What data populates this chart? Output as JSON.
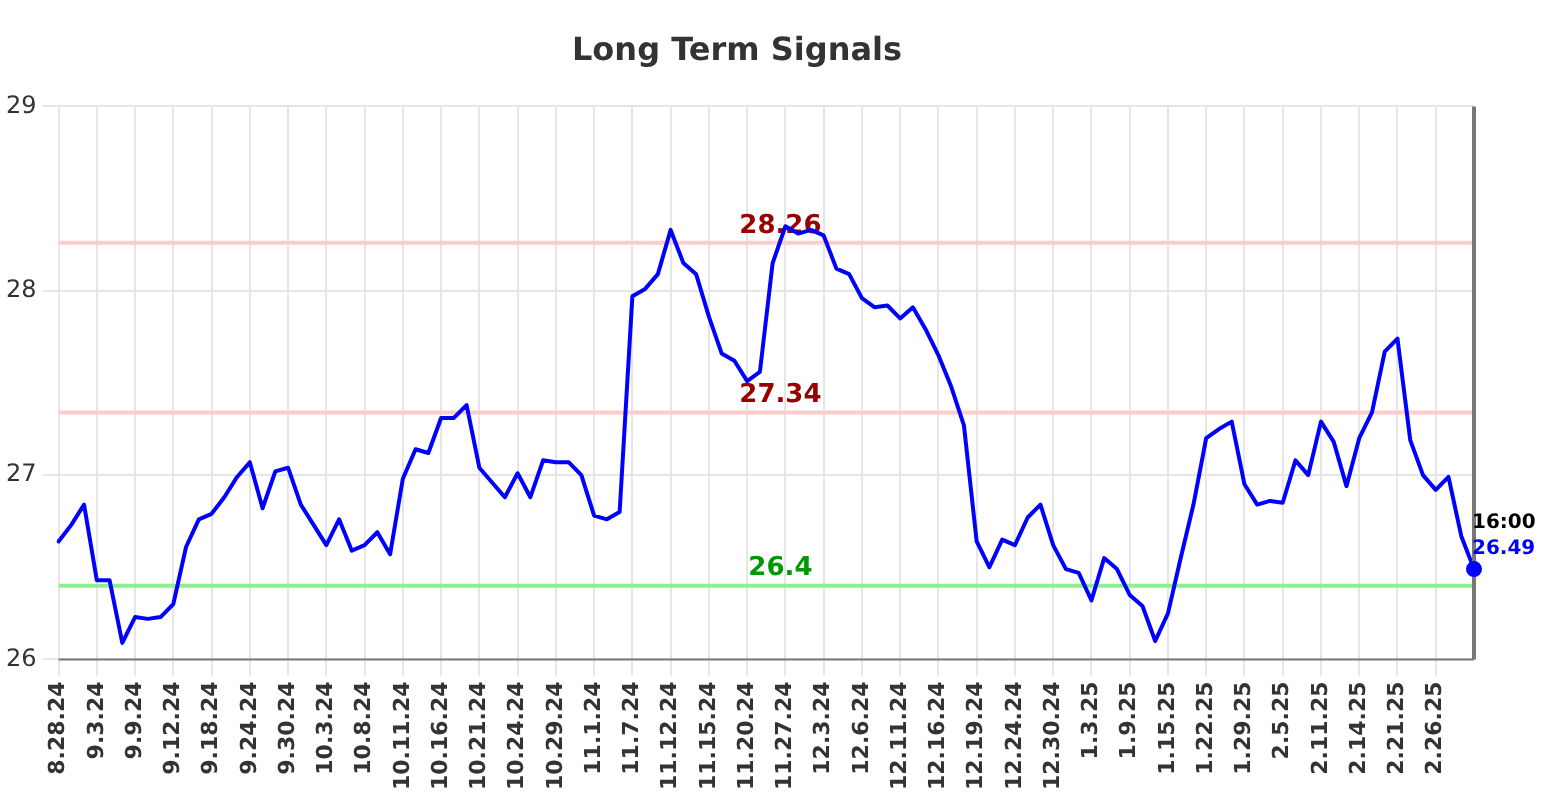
{
  "chart_data": {
    "type": "line",
    "title": "Long Term Signals",
    "categories": [
      "8.28.24",
      null,
      null,
      "9.3.24",
      null,
      null,
      "9.9.24",
      null,
      null,
      "9.12.24",
      null,
      null,
      "9.18.24",
      null,
      null,
      "9.24.24",
      null,
      null,
      "9.30.24",
      null,
      null,
      "10.3.24",
      null,
      null,
      "10.8.24",
      null,
      null,
      "10.11.24",
      null,
      null,
      "10.16.24",
      null,
      null,
      "10.21.24",
      null,
      null,
      "10.24.24",
      null,
      null,
      "10.29.24",
      null,
      null,
      "11.1.24",
      null,
      null,
      "11.7.24",
      null,
      null,
      "11.12.24",
      null,
      null,
      "11.15.24",
      null,
      null,
      "11.20.24",
      null,
      null,
      "11.27.24",
      null,
      null,
      "12.3.24",
      null,
      null,
      "12.6.24",
      null,
      null,
      "12.11.24",
      null,
      null,
      "12.16.24",
      null,
      null,
      "12.19.24",
      null,
      null,
      "12.24.24",
      null,
      null,
      "12.30.24",
      null,
      null,
      "1.3.25",
      null,
      null,
      "1.9.25",
      null,
      null,
      "1.15.25",
      null,
      null,
      "1.22.25",
      null,
      null,
      "1.29.25",
      null,
      null,
      "2.5.25",
      null,
      null,
      "2.11.25",
      null,
      null,
      "2.14.25",
      null,
      null,
      "2.21.25",
      null,
      null,
      "2.26.25",
      null,
      null,
      null
    ],
    "series": [
      {
        "color": "#0000ff",
        "values": [
          26.64,
          26.73,
          26.84,
          26.43,
          26.43,
          26.09,
          26.23,
          26.22,
          26.23,
          26.3,
          26.61,
          26.76,
          26.79,
          26.88,
          26.99,
          27.07,
          26.82,
          27.02,
          27.04,
          26.84,
          26.73,
          26.62,
          26.76,
          26.59,
          26.62,
          26.69,
          26.57,
          26.98,
          27.14,
          27.12,
          27.31,
          27.31,
          27.38,
          27.04,
          26.96,
          26.88,
          27.01,
          26.88,
          27.08,
          27.07,
          27.07,
          27.0,
          26.78,
          26.76,
          26.8,
          27.97,
          28.01,
          28.09,
          28.33,
          28.15,
          28.09,
          27.86,
          27.66,
          27.62,
          27.51,
          27.56,
          28.15,
          28.35,
          28.31,
          28.33,
          28.3,
          28.12,
          28.09,
          27.96,
          27.91,
          27.92,
          27.85,
          27.91,
          27.79,
          27.65,
          27.48,
          27.27,
          26.64,
          26.5,
          26.65,
          26.62,
          26.77,
          26.84,
          26.62,
          26.49,
          26.47,
          26.32,
          26.55,
          26.49,
          26.35,
          26.29,
          26.1,
          26.25,
          26.55,
          26.84,
          27.2,
          27.25,
          27.29,
          26.95,
          26.84,
          26.86,
          26.85,
          27.08,
          27.0,
          27.29,
          27.18,
          26.94,
          27.2,
          27.34,
          27.67,
          27.74,
          27.19,
          27.0,
          26.92,
          26.99,
          26.67,
          26.49
        ]
      }
    ],
    "ylim": [
      26,
      29
    ],
    "yticks": [
      26,
      27,
      28,
      29
    ],
    "grid": true,
    "legend": false,
    "marker": "none",
    "line_style": "solid",
    "ref_lines": [
      {
        "axis": "y",
        "value": 28.26,
        "label": "28.26",
        "color": "#ffcccc"
      },
      {
        "axis": "y",
        "value": 27.34,
        "label": "27.34",
        "color": "#ffcccc"
      },
      {
        "axis": "y",
        "value": 26.4,
        "label": "26.4",
        "color": "#90ee90"
      }
    ],
    "annotations": [
      "16:00",
      "26.49"
    ]
  }
}
